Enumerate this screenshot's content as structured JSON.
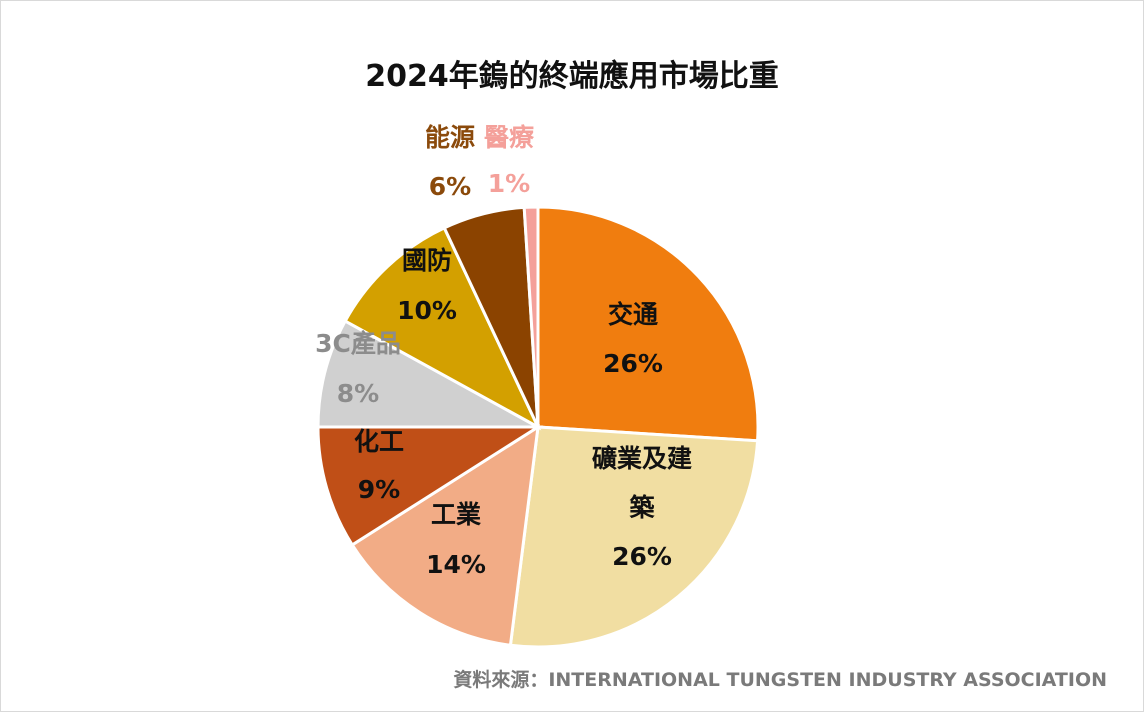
{
  "chart_data": {
    "type": "pie",
    "title": "2024年鎢的終端應用市場比重",
    "slices": [
      {
        "label": "交通",
        "value": 26,
        "display": "26%",
        "color": "#F07D0F",
        "label_color": "#111111"
      },
      {
        "label": "礦業及建築",
        "label_lines": [
          "礦業及建",
          "築"
        ],
        "value": 26,
        "display": "26%",
        "color": "#F1DEA2",
        "label_color": "#111111"
      },
      {
        "label": "工業",
        "value": 14,
        "display": "14%",
        "color": "#F2AC86",
        "label_color": "#111111"
      },
      {
        "label": "化工",
        "value": 9,
        "display": "9%",
        "color": "#C04F17",
        "label_color": "#111111"
      },
      {
        "label": "3C產品",
        "value": 8,
        "display": "8%",
        "color": "#D0D0D0",
        "label_color": "#8C8C8C"
      },
      {
        "label": "國防",
        "value": 10,
        "display": "10%",
        "color": "#D3A000",
        "label_color": "#111111"
      },
      {
        "label": "能源",
        "value": 6,
        "display": "6%",
        "color": "#8B4300",
        "label_color": "#8B4A0B"
      },
      {
        "label": "醫療",
        "value": 1,
        "display": "1%",
        "color": "#F4A09A",
        "label_color": "#F4A09A"
      }
    ],
    "start_angle_deg": 0,
    "direction": "clockwise",
    "legend": "none"
  },
  "source_note": "資料來源：INTERNATIONAL TUNGSTEN INDUSTRY ASSOCIATION"
}
